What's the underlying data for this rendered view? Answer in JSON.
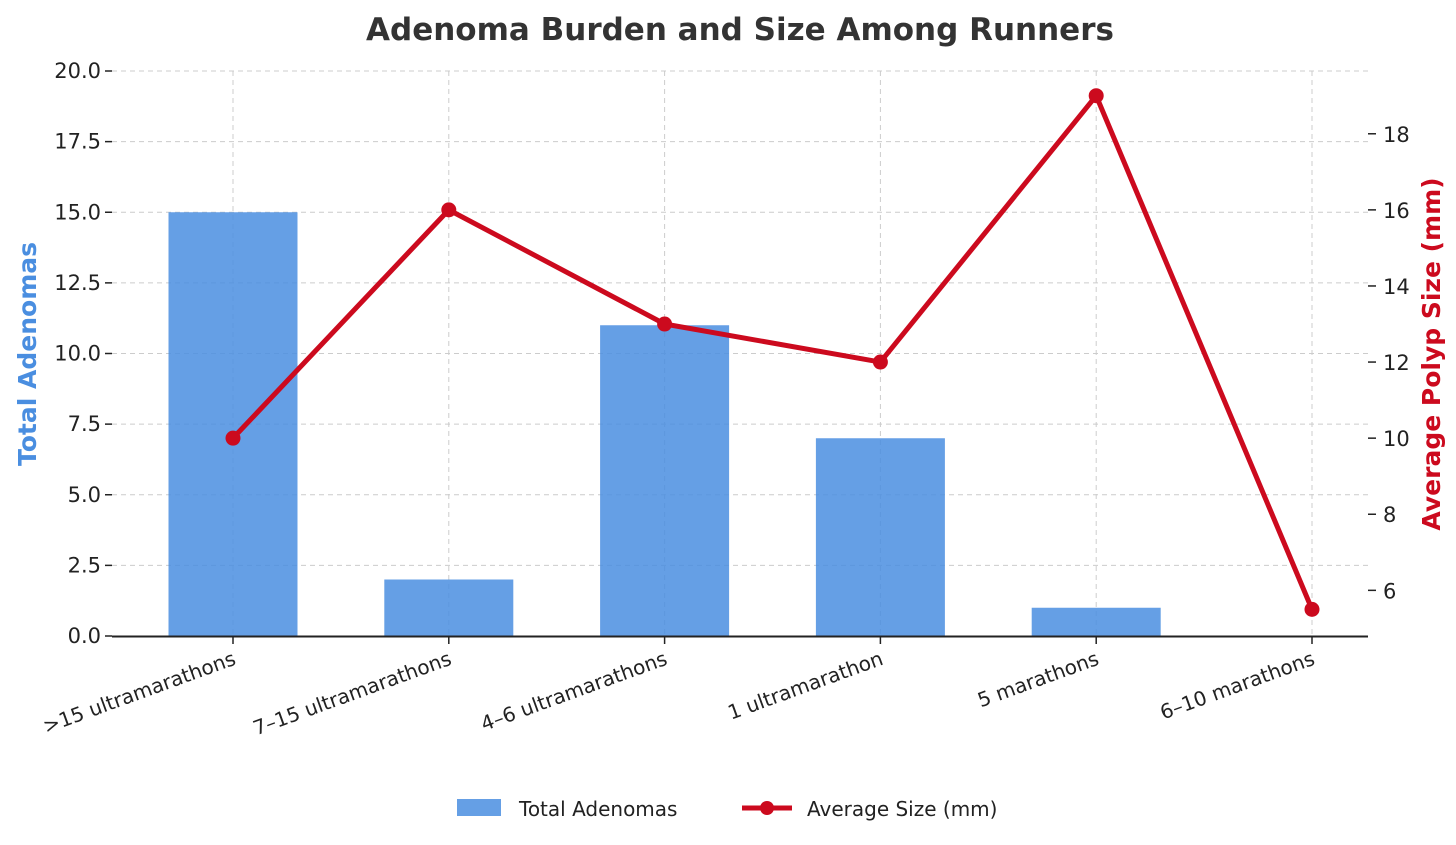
{
  "chart_data": {
    "type": "bar+line",
    "title": "Adenoma Burden and Size Among Runners",
    "categories": [
      ">15 ultramarathons",
      "7–15 ultramarathons",
      "4–6 ultramarathons",
      "1 ultramarathon",
      "5 marathons",
      "6–10 marathons"
    ],
    "series": [
      {
        "name": "Total Adenomas",
        "type": "bar",
        "axis": "left",
        "color": "#4a8ee0",
        "values": [
          15,
          2,
          11,
          7,
          1,
          0
        ]
      },
      {
        "name": "Average Size (mm)",
        "type": "line",
        "axis": "right",
        "color": "#cc0a1e",
        "values": [
          10,
          16,
          13,
          12,
          19,
          5.5
        ]
      }
    ],
    "y_left": {
      "label": "Total Adenomas",
      "range": [
        0,
        20
      ],
      "ticks": [
        "0.0",
        "2.5",
        "5.0",
        "7.5",
        "10.0",
        "12.5",
        "15.0",
        "17.5",
        "20.0"
      ],
      "tick_values": [
        0,
        2.5,
        5,
        7.5,
        10,
        12.5,
        15,
        17.5,
        20
      ]
    },
    "y_right": {
      "label": "Average Polyp Size (mm)",
      "range": [
        4.8,
        19.65
      ],
      "ticks": [
        "6",
        "8",
        "10",
        "12",
        "14",
        "16",
        "18"
      ],
      "tick_values": [
        6,
        8,
        10,
        12,
        14,
        16,
        18
      ]
    },
    "grid": true,
    "legend_position": "bottom-center"
  }
}
